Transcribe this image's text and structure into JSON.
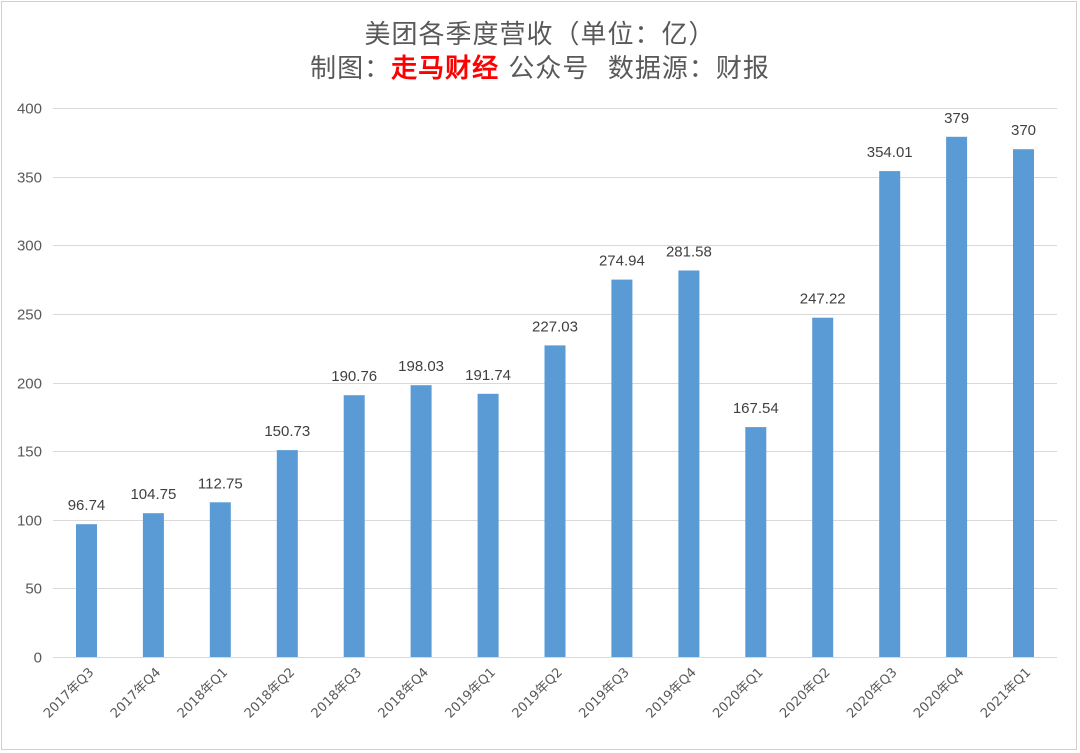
{
  "title": {
    "line1": "美团各季度营收（单位：亿）",
    "line2_prefix": "制图：",
    "line2_brand": "走马财经",
    "line2_suffix": " 公众号  数据源：财报"
  },
  "colors": {
    "bar": "#5b9bd5",
    "brand": "#ff0000",
    "grid": "#d9d9d9"
  },
  "chart_data": {
    "type": "bar",
    "title": "美团各季度营收（单位：亿）",
    "subtitle": "制图：走马财经 公众号  数据源：财报",
    "xlabel": "",
    "ylabel": "",
    "ylim": [
      0,
      400
    ],
    "yticks": [
      0,
      50,
      100,
      150,
      200,
      250,
      300,
      350,
      400
    ],
    "grid": true,
    "legend": "none",
    "categories": [
      "2017年Q3",
      "2017年Q4",
      "2018年Q1",
      "2018年Q2",
      "2018年Q3",
      "2018年Q4",
      "2019年Q1",
      "2019年Q2",
      "2019年Q3",
      "2019年Q4",
      "2020年Q1",
      "2020年Q2",
      "2020年Q3",
      "2020年Q4",
      "2021年Q1"
    ],
    "values": [
      96.74,
      104.75,
      112.75,
      150.73,
      190.76,
      198.03,
      191.74,
      227.03,
      274.94,
      281.58,
      167.54,
      247.22,
      354.01,
      379,
      370
    ],
    "value_labels": [
      "96.74",
      "104.75",
      "112.75",
      "150.73",
      "190.76",
      "198.03",
      "191.74",
      "227.03",
      "274.94",
      "281.58",
      "167.54",
      "247.22",
      "354.01",
      "379",
      "370"
    ]
  }
}
